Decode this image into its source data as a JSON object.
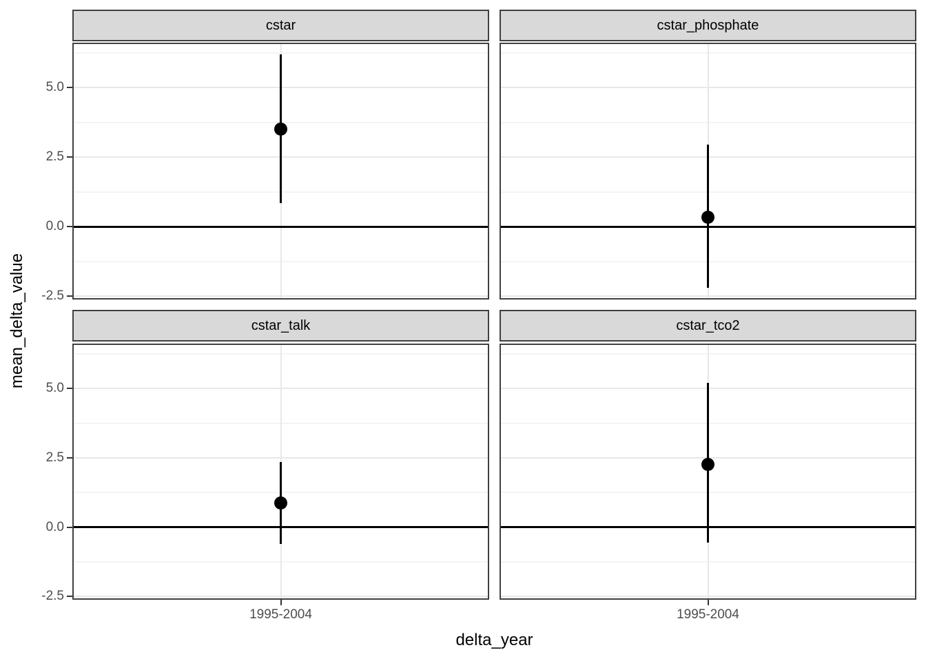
{
  "figure": {
    "y_axis_title": "mean_delta_value",
    "x_axis_title": "delta_year"
  },
  "chart_data": {
    "type": "scatter",
    "subtype": "pointrange_faceted",
    "title": "",
    "xlabel": "delta_year",
    "ylabel": "mean_delta_value",
    "x_categories": [
      "1995-2004"
    ],
    "facets": [
      {
        "label": "cstar",
        "x": "1995-2004",
        "mean": 3.5,
        "lower": 0.85,
        "upper": 6.2
      },
      {
        "label": "cstar_phosphate",
        "x": "1995-2004",
        "mean": 0.35,
        "lower": -2.2,
        "upper": 2.95
      },
      {
        "label": "cstar_talk",
        "x": "1995-2004",
        "mean": 0.88,
        "lower": -0.6,
        "upper": 2.35
      },
      {
        "label": "cstar_tco2",
        "x": "1995-2004",
        "mean": 2.25,
        "lower": -0.55,
        "upper": 5.2
      }
    ],
    "ylim": [
      -2.62,
      6.62
    ],
    "yticks_major": [
      5.0,
      2.5,
      0.0,
      -2.5
    ],
    "ytick_labels": [
      "5.0",
      "2.5",
      "0.0",
      "-2.5"
    ],
    "yticks_minor": [
      6.25,
      3.75,
      1.25,
      -1.25
    ],
    "reference_line_y": 0,
    "grid": true,
    "legend": "none",
    "colors": {
      "strip_fill": "#D9D9D9",
      "panel_border": "#404040",
      "grid_major": "#E8E8E8",
      "grid_minor": "#F4F4F4",
      "geom": "#000000",
      "axis_text": "#4D4D4D",
      "background": "#FFFFFF"
    }
  }
}
